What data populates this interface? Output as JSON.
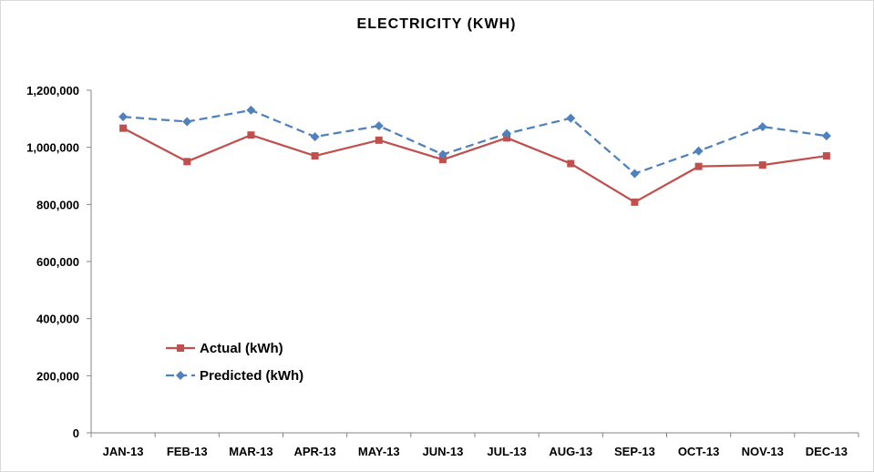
{
  "chart_data": {
    "type": "line",
    "title": "ELECTRICITY (KWH)",
    "xlabel": "",
    "ylabel": "",
    "categories": [
      "JAN-13",
      "FEB-13",
      "MAR-13",
      "APR-13",
      "MAY-13",
      "JUN-13",
      "JUL-13",
      "AUG-13",
      "SEP-13",
      "OCT-13",
      "NOV-13",
      "DEC-13"
    ],
    "ylim": [
      0,
      1200000
    ],
    "yticks": [
      0,
      200000,
      400000,
      600000,
      800000,
      1000000,
      1200000
    ],
    "ytick_labels": [
      "0",
      "200,000",
      "400,000",
      "600,000",
      "800,000",
      "1,000,000",
      "1,200,000"
    ],
    "grid": false,
    "legend_position": "lower-left",
    "series": [
      {
        "name": "Actual (kWh)",
        "color": "#c0504d",
        "marker": "square",
        "line_style": "solid",
        "values": [
          1067000,
          950000,
          1043000,
          970000,
          1025000,
          957000,
          1033000,
          943000,
          808000,
          933000,
          938000,
          970000
        ]
      },
      {
        "name": "Predicted (kWh)",
        "color": "#4f81bd",
        "marker": "diamond",
        "line_style": "dashed",
        "values": [
          1107000,
          1090000,
          1130000,
          1037000,
          1075000,
          975000,
          1048000,
          1102000,
          908000,
          987000,
          1072000,
          1040000
        ]
      }
    ]
  }
}
